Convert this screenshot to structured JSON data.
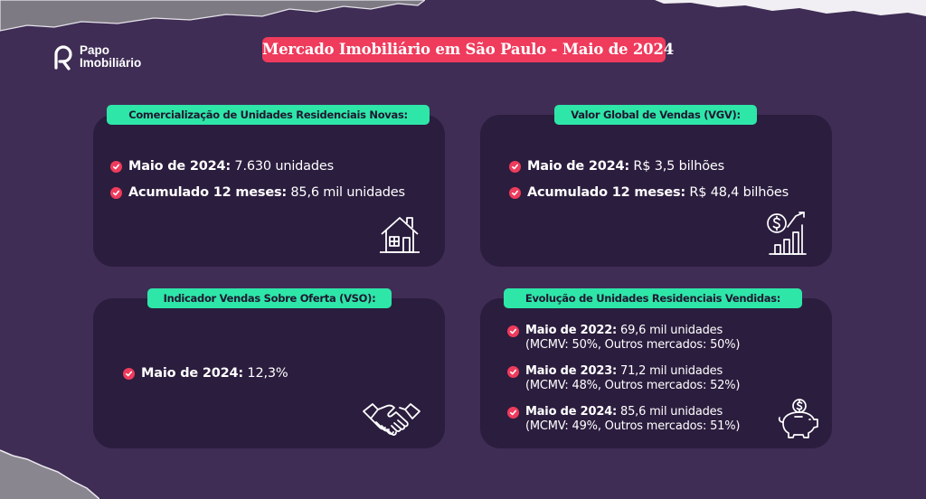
{
  "brand": {
    "line1": "Papo",
    "line2": "Imobiliário"
  },
  "title": "Mercado Imobiliário em São Paulo - Maio de 2024",
  "colors": {
    "background": "#3f2d55",
    "card": "#2b1d3e",
    "accent": "#ef3b5c",
    "tag": "#2ee6a8"
  },
  "cards": [
    {
      "tag": "Comercialização de Unidades Residenciais Novas:",
      "icon": "house-icon",
      "items": [
        {
          "label": "Maio de 2024:",
          "value": " 7.630 unidades"
        },
        {
          "label": "Acumulado 12 meses:",
          "value": " 85,6 mil unidades"
        }
      ]
    },
    {
      "tag": "Valor Global de Vendas (VGV):",
      "icon": "money-growth-icon",
      "items": [
        {
          "label": "Maio de 2024:",
          "value": " R$ 3,5 bilhões"
        },
        {
          "label": "Acumulado 12 meses:",
          "value": " R$ 48,4 bilhões"
        }
      ]
    },
    {
      "tag": "Indicador Vendas Sobre Oferta (VSO):",
      "icon": "handshake-icon",
      "items": [
        {
          "label": "Maio de 2024:",
          "value": " 12,3%"
        }
      ]
    },
    {
      "tag": "Evolução de Unidades Residenciais Vendidas:",
      "icon": "piggy-bank-icon",
      "items": [
        {
          "label": "Maio de 2022:",
          "value": " 69,6 mil unidades",
          "sub": "(MCMV: 50%, Outros mercados: 50%)"
        },
        {
          "label": "Maio de 2023:",
          "value": " 71,2 mil unidades",
          "sub": "(MCMV: 48%, Outros mercados: 52%)"
        },
        {
          "label": "Maio de 2024:",
          "value": " 85,6 mil unidades",
          "sub": "(MCMV: 49%, Outros mercados: 51%)"
        }
      ]
    }
  ]
}
